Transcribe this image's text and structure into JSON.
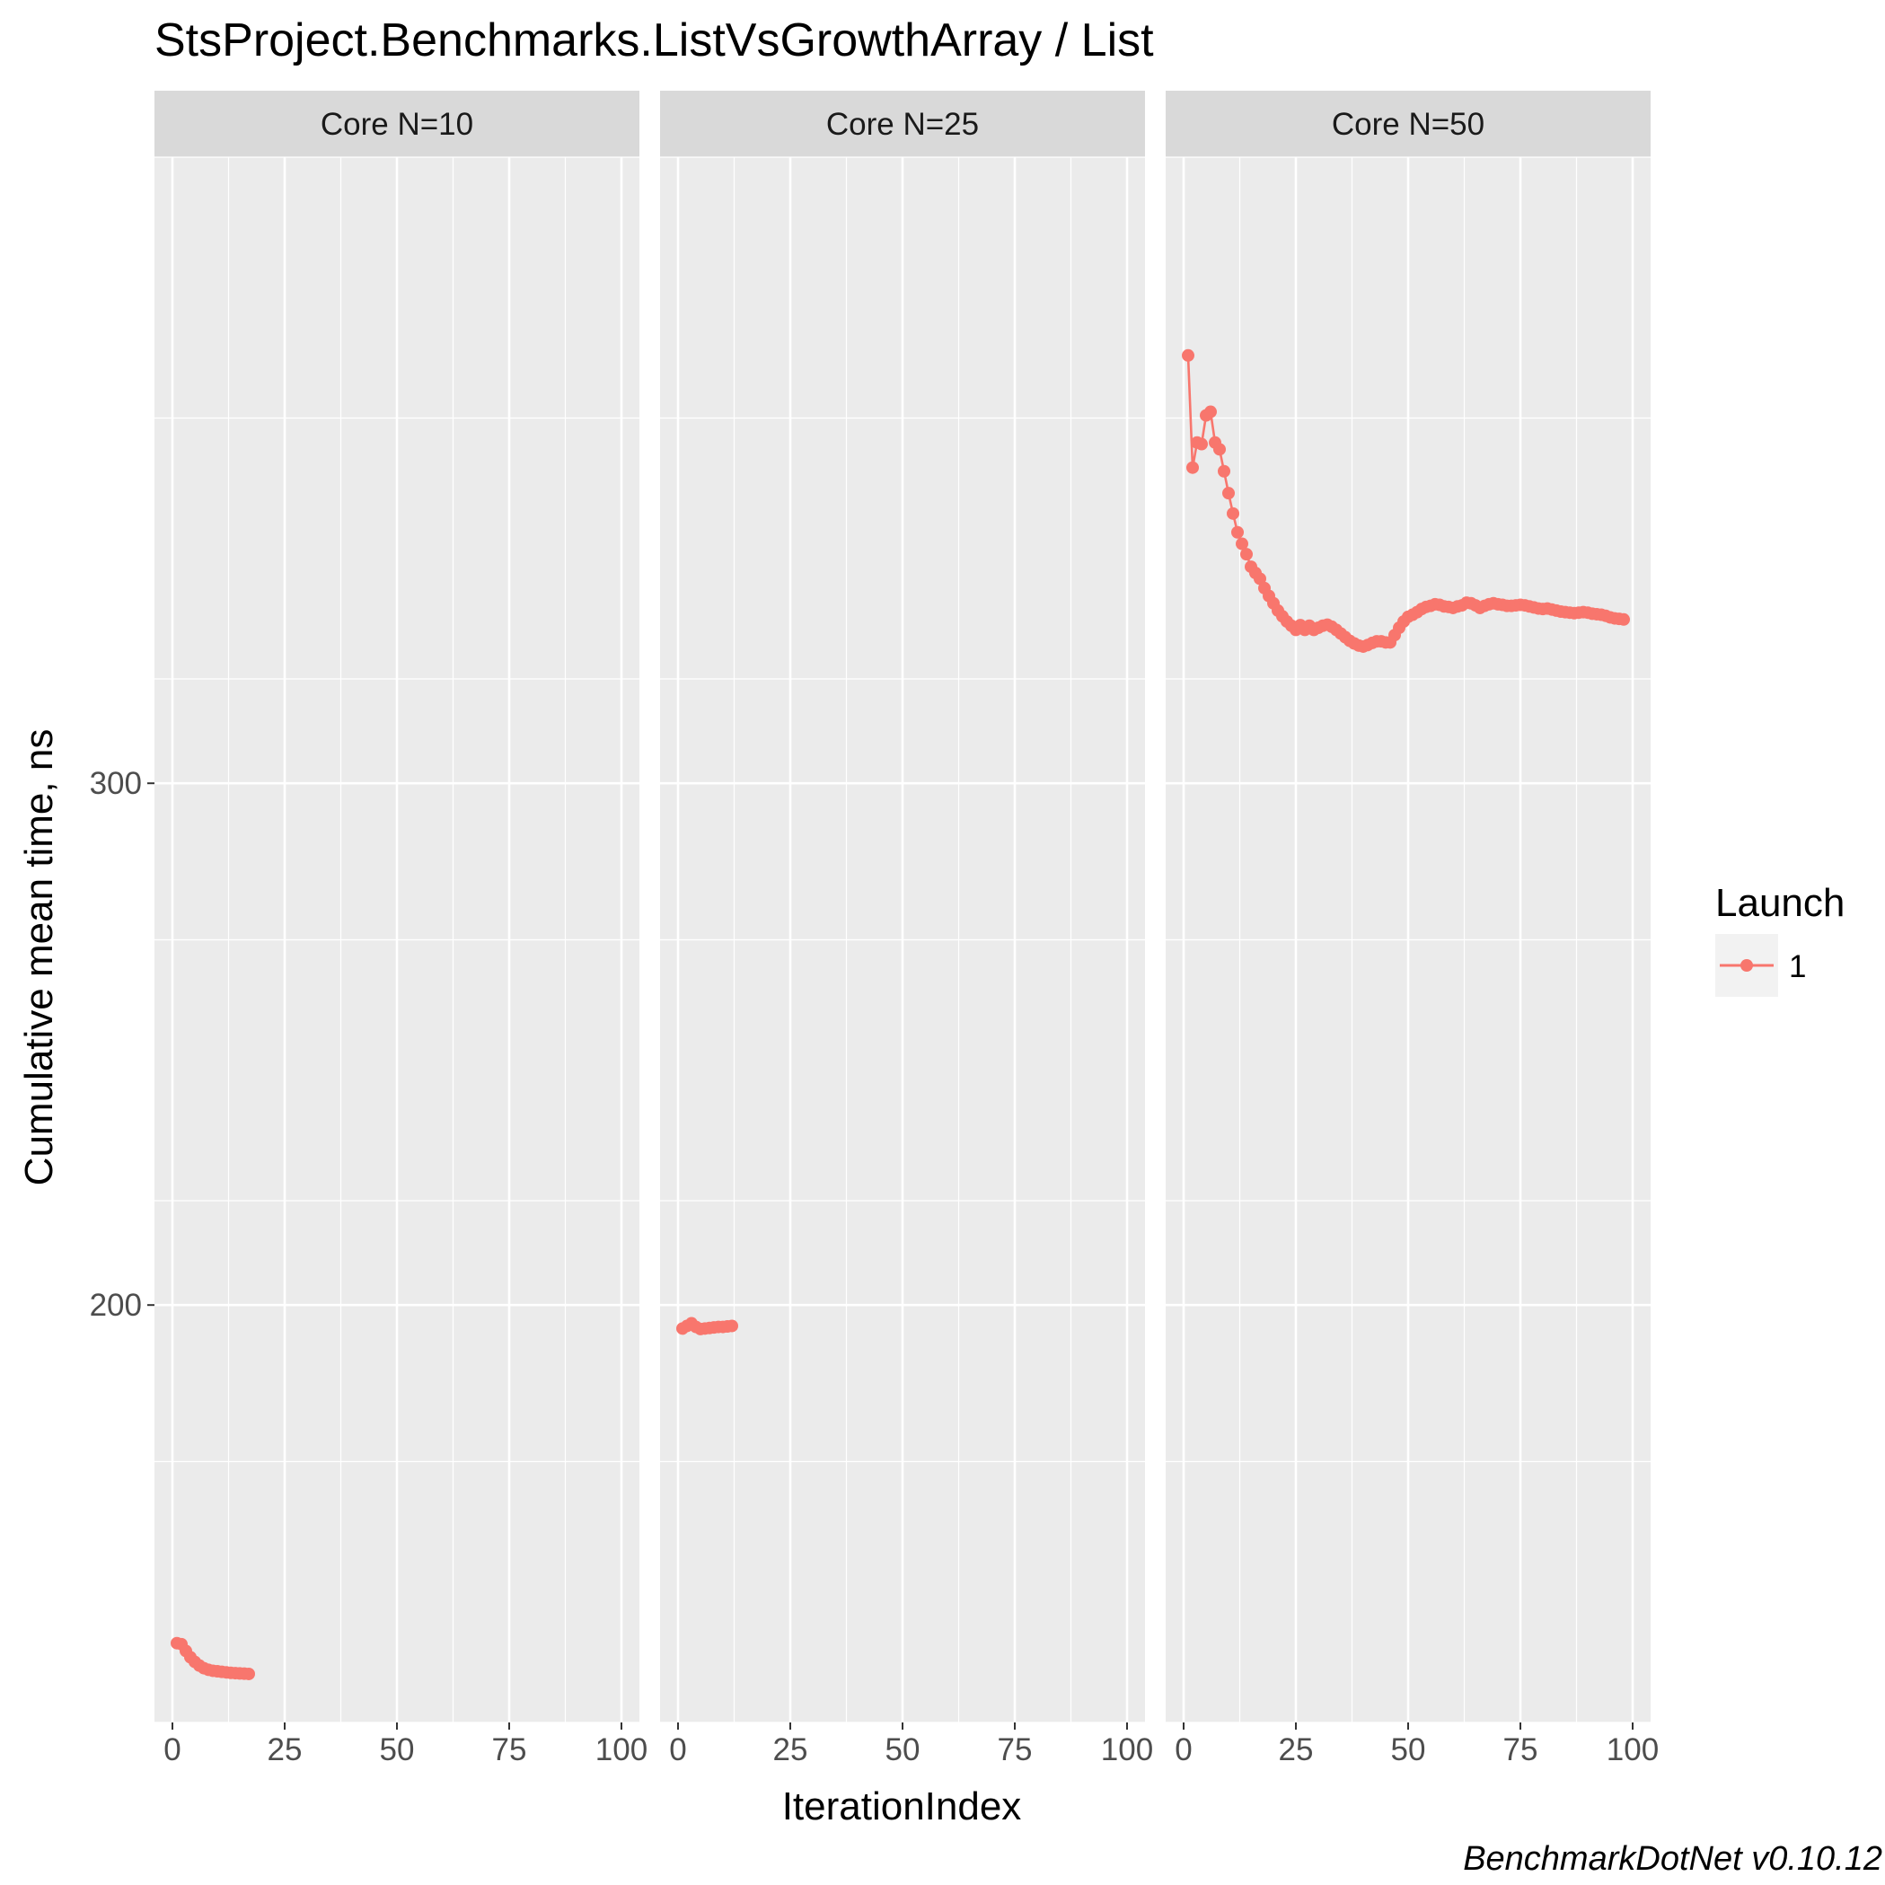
{
  "chart_data": {
    "type": "line",
    "title": "StsProject.Benchmarks.ListVsGrowthArray / List",
    "xlabel": "IterationIndex",
    "ylabel": "Cumulative mean time, ns",
    "caption": "BenchmarkDotNet v0.10.12",
    "x_ticks": [
      0,
      25,
      50,
      75,
      100
    ],
    "y_ticks": [
      200,
      300
    ],
    "xlim": [
      -4,
      104
    ],
    "ylim": [
      120,
      420
    ],
    "grid": true,
    "legend": {
      "title": "Launch",
      "position": "right",
      "entries": [
        "1"
      ]
    },
    "series_color": "#F8766D",
    "facets": [
      {
        "label": "Core N=10",
        "series": [
          {
            "name": "1",
            "x": [
              1,
              2,
              3,
              4,
              5,
              6,
              7,
              8,
              9,
              10,
              11,
              12,
              13,
              14,
              15,
              16,
              17
            ],
            "y": [
              135.2,
              135.0,
              133.7,
              132.5,
              131.6,
              130.9,
              130.4,
              130.1,
              129.9,
              129.8,
              129.7,
              129.6,
              129.5,
              129.45,
              129.4,
              129.35,
              129.3
            ]
          }
        ]
      },
      {
        "label": "Core N=25",
        "series": [
          {
            "name": "1",
            "x": [
              1,
              2,
              3,
              4,
              5,
              6,
              7,
              8,
              9,
              10,
              11,
              12
            ],
            "y": [
              195.5,
              196.0,
              196.5,
              195.8,
              195.4,
              195.5,
              195.6,
              195.7,
              195.8,
              195.8,
              195.9,
              196.0
            ]
          }
        ]
      },
      {
        "label": "Core N=50",
        "series": [
          {
            "name": "1",
            "x": [
              1,
              2,
              3,
              4,
              5,
              6,
              7,
              8,
              9,
              10,
              11,
              12,
              13,
              14,
              15,
              16,
              17,
              18,
              19,
              20,
              21,
              22,
              23,
              24,
              25,
              26,
              27,
              28,
              29,
              30,
              31,
              32,
              33,
              34,
              35,
              36,
              37,
              38,
              39,
              40,
              41,
              42,
              43,
              44,
              45,
              46,
              47,
              48,
              49,
              50,
              51,
              52,
              53,
              54,
              55,
              56,
              57,
              58,
              59,
              60,
              61,
              62,
              63,
              64,
              65,
              66,
              67,
              68,
              69,
              70,
              71,
              72,
              73,
              74,
              75,
              76,
              77,
              78,
              79,
              80,
              81,
              82,
              83,
              84,
              85,
              86,
              87,
              88,
              89,
              90,
              91,
              92,
              93,
              94,
              95,
              96,
              97,
              98
            ],
            "y": [
              382,
              360.5,
              365.3,
              365.0,
              370.5,
              371.2,
              365.3,
              364.0,
              359.8,
              355.6,
              351.7,
              348.1,
              345.9,
              343.9,
              341.5,
              340.3,
              339.2,
              337.4,
              335.9,
              334.5,
              333.1,
              332.0,
              331.0,
              330.2,
              329.4,
              330.3,
              329.4,
              330.2,
              329.4,
              329.8,
              330.2,
              330.4,
              330.0,
              329.4,
              328.7,
              328.0,
              327.3,
              326.8,
              326.4,
              326.2,
              326.5,
              326.9,
              327.2,
              327.2,
              327.0,
              327.0,
              328.4,
              329.8,
              331.0,
              331.9,
              332.3,
              332.8,
              333.4,
              333.8,
              334.0,
              334.3,
              334.2,
              333.9,
              333.8,
              333.6,
              333.9,
              334.1,
              334.6,
              334.5,
              334.1,
              333.6,
              334.0,
              334.3,
              334.5,
              334.3,
              334.2,
              334.0,
              334.0,
              334.1,
              334.2,
              334.1,
              333.9,
              333.7,
              333.5,
              333.4,
              333.5,
              333.3,
              333.1,
              332.9,
              332.8,
              332.7,
              332.6,
              332.7,
              332.8,
              332.7,
              332.5,
              332.4,
              332.3,
              332.1,
              331.8,
              331.6,
              331.5,
              331.4
            ]
          }
        ]
      }
    ]
  }
}
